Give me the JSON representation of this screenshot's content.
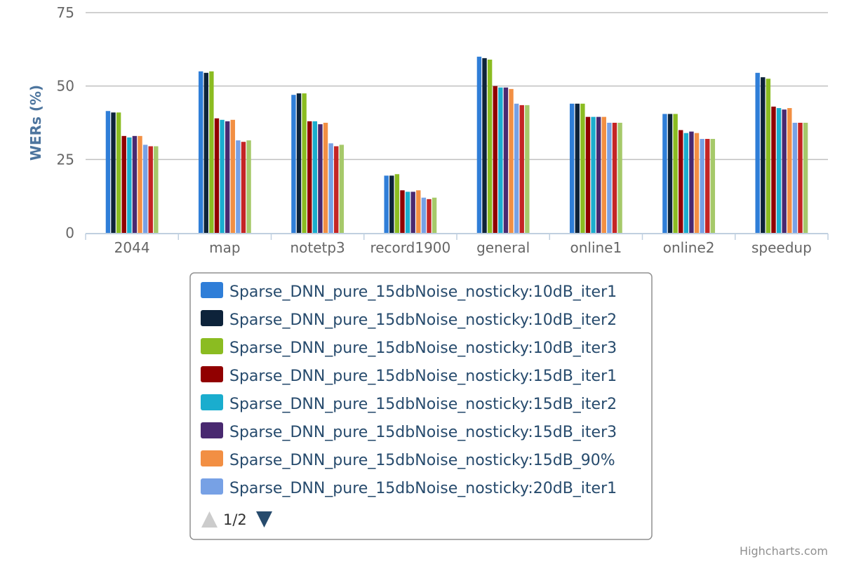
{
  "chart_data": {
    "type": "bar",
    "ylabel": "WERs (%)",
    "ylim": [
      0,
      75
    ],
    "yticks": [
      "0",
      "25",
      "50",
      "75"
    ],
    "grid": true,
    "legend_position": "bottom-center",
    "categories": [
      "2044",
      "map",
      "notetp3",
      "record1900",
      "general",
      "online1",
      "online2",
      "speedup"
    ],
    "series": [
      {
        "name": "Sparse_DNN_pure_15dbNoise_nosticky:10dB_iter1",
        "color": "#2f7ed8",
        "values": [
          41.5,
          55.0,
          47.0,
          19.5,
          60.0,
          44.0,
          40.5,
          54.5
        ]
      },
      {
        "name": "Sparse_DNN_pure_15dbNoise_nosticky:10dB_iter2",
        "color": "#0d233a",
        "values": [
          41.0,
          54.5,
          47.5,
          19.5,
          59.5,
          44.0,
          40.5,
          53.0
        ]
      },
      {
        "name": "Sparse_DNN_pure_15dbNoise_nosticky:10dB_iter3",
        "color": "#8bbc21",
        "values": [
          41.0,
          55.0,
          47.5,
          20.0,
          59.0,
          44.0,
          40.5,
          52.5
        ]
      },
      {
        "name": "Sparse_DNN_pure_15dbNoise_nosticky:15dB_iter1",
        "color": "#910000",
        "values": [
          33.0,
          39.0,
          38.0,
          14.5,
          50.0,
          39.5,
          35.0,
          43.0
        ]
      },
      {
        "name": "Sparse_DNN_pure_15dbNoise_nosticky:15dB_iter2",
        "color": "#1aadce",
        "values": [
          32.5,
          38.5,
          38.0,
          14.0,
          49.5,
          39.5,
          34.0,
          42.5
        ]
      },
      {
        "name": "Sparse_DNN_pure_15dbNoise_nosticky:15dB_iter3",
        "color": "#492970",
        "values": [
          33.0,
          38.0,
          37.0,
          14.0,
          49.5,
          39.5,
          34.5,
          42.0
        ]
      },
      {
        "name": "Sparse_DNN_pure_15dbNoise_nosticky:15dB_90%",
        "color": "#f28f43",
        "values": [
          33.0,
          38.5,
          37.5,
          14.5,
          49.0,
          39.5,
          34.0,
          42.5
        ]
      },
      {
        "name": "Sparse_DNN_pure_15dbNoise_nosticky:20dB_iter1",
        "color": "#77a1e5",
        "values": [
          30.0,
          31.5,
          30.5,
          12.0,
          44.0,
          37.5,
          32.0,
          37.5
        ]
      },
      {
        "name": "",
        "color": "#c42525",
        "values": [
          29.5,
          31.0,
          29.5,
          11.5,
          43.5,
          37.5,
          32.0,
          37.5
        ]
      },
      {
        "name": "",
        "color": "#a6c96a",
        "values": [
          29.5,
          31.5,
          30.0,
          12.0,
          43.5,
          37.5,
          32.0,
          37.5
        ]
      }
    ]
  },
  "legend": {
    "pager_text": "1/2",
    "prev_icon": "triangle-up-icon",
    "next_icon": "triangle-down-icon",
    "prev_disabled": true
  },
  "credits": "Highcharts.com"
}
